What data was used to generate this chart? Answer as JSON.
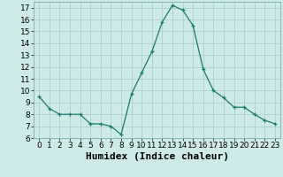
{
  "x": [
    0,
    1,
    2,
    3,
    4,
    5,
    6,
    7,
    8,
    9,
    10,
    11,
    12,
    13,
    14,
    15,
    16,
    17,
    18,
    19,
    20,
    21,
    22,
    23
  ],
  "y": [
    9.5,
    8.5,
    8.0,
    8.0,
    8.0,
    7.2,
    7.2,
    7.0,
    6.3,
    9.7,
    11.5,
    13.3,
    15.8,
    17.2,
    16.8,
    15.5,
    11.8,
    10.0,
    9.4,
    8.6,
    8.6,
    8.0,
    7.5,
    7.2
  ],
  "xlabel": "Humidex (Indice chaleur)",
  "ylim": [
    6,
    17.5
  ],
  "xlim": [
    -0.5,
    23.5
  ],
  "yticks": [
    6,
    7,
    8,
    9,
    10,
    11,
    12,
    13,
    14,
    15,
    16,
    17
  ],
  "xtick_labels": [
    "0",
    "1",
    "2",
    "3",
    "4",
    "5",
    "6",
    "7",
    "8",
    "9",
    "10",
    "11",
    "12",
    "13",
    "14",
    "15",
    "16",
    "17",
    "18",
    "19",
    "20",
    "21",
    "22",
    "23"
  ],
  "line_color": "#1a7a6e",
  "marker_color": "#1a7a6e",
  "bg_color": "#ceeae8",
  "grid_color": "#b0cfcc",
  "font_size_xlabel": 8,
  "font_size_tick": 6.5
}
